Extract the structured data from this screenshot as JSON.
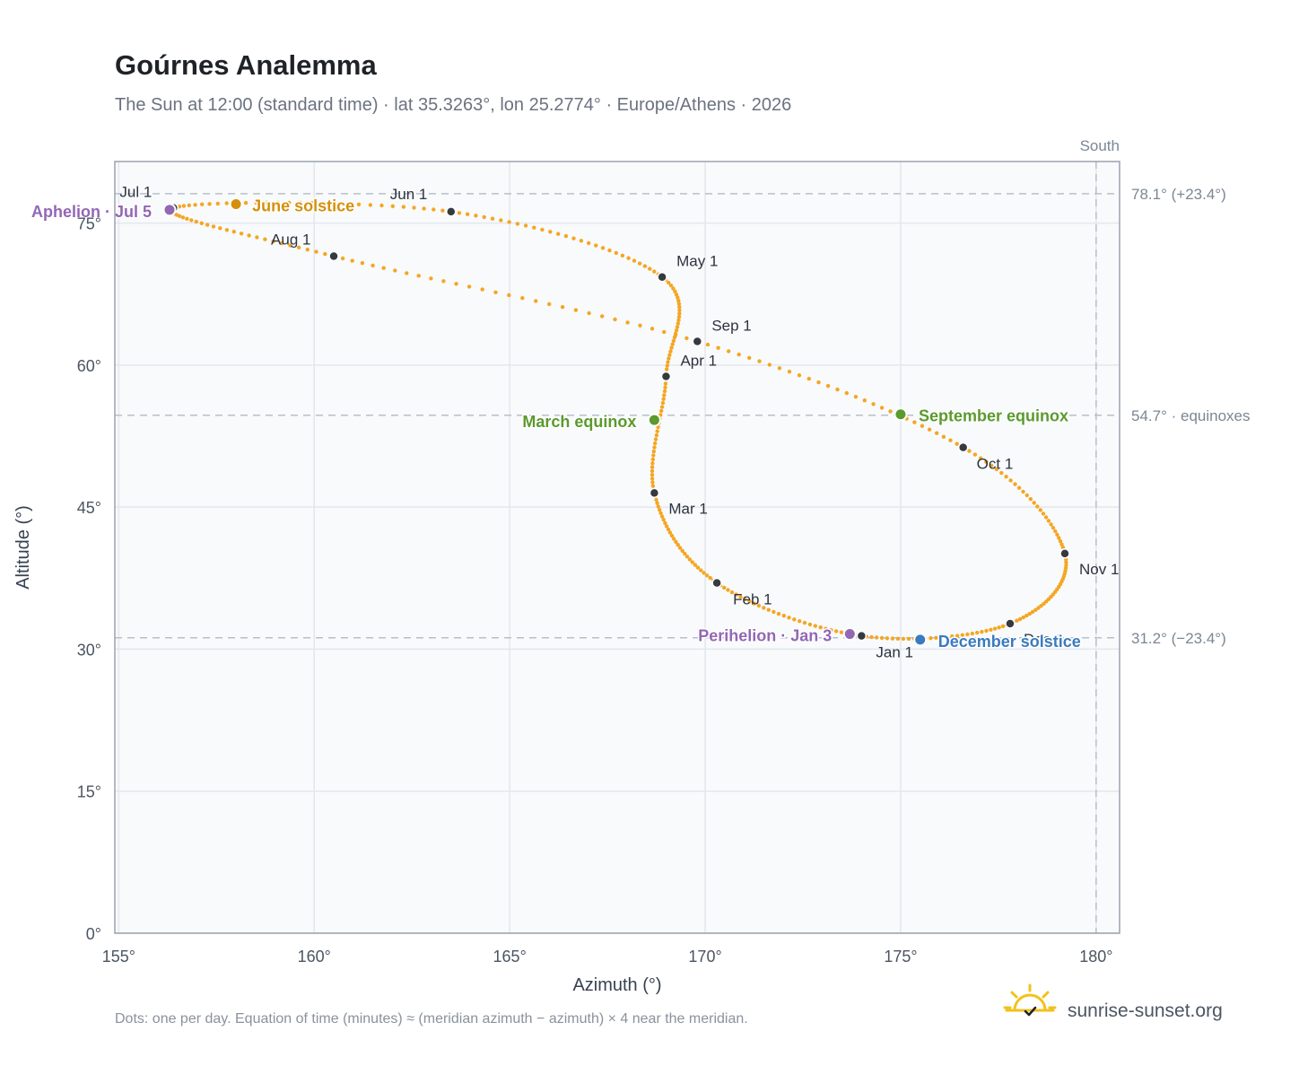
{
  "header": {
    "title": "Goúrnes Analemma",
    "subtitle": "The Sun at 12:00 (standard time) · lat 35.3263°, lon 25.2774° · Europe/Athens · 2026"
  },
  "footer": {
    "note": "Dots: one per day. Equation of time (minutes) ≈ (meridian azimuth − azimuth) × 4 near the meridian.",
    "brand": "sunrise-sunset.org"
  },
  "colors": {
    "path": "#f5a623",
    "month_dot": "#343a40",
    "june_solstice": "#d4900c",
    "december_solstice": "#3a7bbf",
    "equinox": "#5a9a2e",
    "apsis": "#9267b4",
    "grid": "#e3e7ec",
    "plot_bg": "#f8fafc",
    "frame": "#9aa3ad",
    "refline": "#b8c0c8",
    "logo": "#f2c21b"
  },
  "chart_data": {
    "type": "scatter",
    "title": "Goúrnes Analemma",
    "xlabel": "Azimuth (°)",
    "ylabel": "Altitude (°)",
    "xlim": [
      154.9,
      180.6
    ],
    "ylim": [
      0,
      81.5
    ],
    "grid": true,
    "x_ticks": [
      {
        "v": 155,
        "label": "155°"
      },
      {
        "v": 160,
        "label": "160°"
      },
      {
        "v": 165,
        "label": "165°"
      },
      {
        "v": 170,
        "label": "170°"
      },
      {
        "v": 175,
        "label": "175°"
      },
      {
        "v": 180,
        "label": "180°"
      }
    ],
    "y_ticks": [
      {
        "v": 0,
        "label": "0°"
      },
      {
        "v": 15,
        "label": "15°"
      },
      {
        "v": 30,
        "label": "30°"
      },
      {
        "v": 45,
        "label": "45°"
      },
      {
        "v": 60,
        "label": "60°"
      },
      {
        "v": 75,
        "label": "75°"
      }
    ],
    "meridian": {
      "azimuth": 180,
      "label": "South"
    },
    "reference_lines": [
      {
        "altitude": 78.1,
        "label": "78.1° (+23.4°)"
      },
      {
        "altitude": 54.7,
        "label": "54.7° · equinoxes"
      },
      {
        "altitude": 31.2,
        "label": "31.2° (−23.4°)"
      }
    ],
    "series": [
      {
        "points": [
          {
            "label": "Jan 1",
            "az": 174.0,
            "alt": 31.4
          },
          {
            "label": "Feb 1",
            "az": 170.3,
            "alt": 37.0
          },
          {
            "label": "Mar 1",
            "az": 168.7,
            "alt": 46.5
          },
          {
            "label": "Apr 1",
            "az": 169.0,
            "alt": 58.8
          },
          {
            "label": "May 1",
            "az": 168.9,
            "alt": 69.3
          },
          {
            "label": "Jun 1",
            "az": 163.5,
            "alt": 76.2
          },
          {
            "label": "Jul 1",
            "az": 156.4,
            "alt": 76.6
          },
          {
            "label": "Aug 1",
            "az": 160.5,
            "alt": 71.5
          },
          {
            "label": "Sep 1",
            "az": 169.8,
            "alt": 62.5
          },
          {
            "label": "Oct 1",
            "az": 176.6,
            "alt": 51.3
          },
          {
            "label": "Nov 1",
            "az": 179.2,
            "alt": 40.1
          },
          {
            "label": "Dec 1",
            "az": 177.8,
            "alt": 32.7
          }
        ]
      }
    ],
    "events": [
      {
        "label": "June solstice",
        "az": 158.0,
        "alt": 77.0,
        "color": "#d4900c"
      },
      {
        "label": "September equinox",
        "az": 175.0,
        "alt": 54.8,
        "color": "#5a9a2e"
      },
      {
        "label": "March equinox",
        "az": 168.7,
        "alt": 54.2,
        "color": "#5a9a2e"
      },
      {
        "label": "December solstice",
        "az": 175.5,
        "alt": 31.0,
        "color": "#3a7bbf"
      },
      {
        "label": "Perihelion · Jan 3",
        "az": 173.7,
        "alt": 31.6,
        "color": "#9267b4"
      },
      {
        "label": "Aphelion · Jul 5",
        "az": 156.3,
        "alt": 76.4,
        "color": "#9267b4"
      }
    ]
  }
}
